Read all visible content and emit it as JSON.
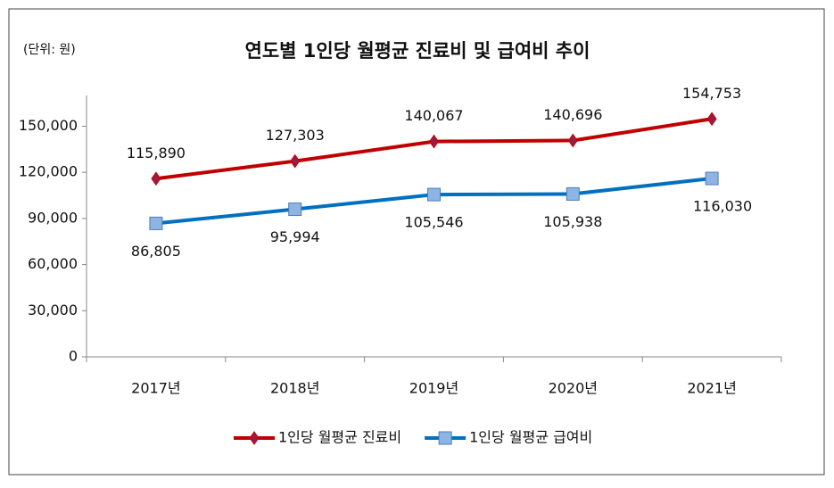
{
  "chart_data": {
    "type": "line",
    "title": "연도별 1인당 월평균 진료비 및 급여비 추이",
    "unit_note": "(단위: 원)",
    "categories": [
      "2017년",
      "2018년",
      "2019년",
      "2020년",
      "2021년"
    ],
    "series": [
      {
        "name": "1인당 월평균 진료비",
        "color": "#c00000",
        "marker_color": "#9b1b45",
        "marker": "diamond",
        "values": [
          115890,
          127303,
          140067,
          140696,
          154753
        ],
        "value_labels": [
          "115,890",
          "127,303",
          "140,067",
          "140,696",
          "154,753"
        ]
      },
      {
        "name": "1인당 월평균 급여비",
        "color": "#0070c0",
        "marker_color": "#8eb4e3",
        "marker": "square",
        "values": [
          86805,
          95994,
          105546,
          105938,
          116030
        ],
        "value_labels": [
          "86,805",
          "95,994",
          "105,546",
          "105,938",
          "116,030"
        ]
      }
    ],
    "ylim": [
      0,
      170000
    ],
    "yticks": [
      0,
      {
        "value": 30000,
        "label": "30,000"
      },
      {
        "value": 60000,
        "label": "60,000"
      },
      {
        "value": 90000,
        "label": "90,000"
      },
      {
        "value": 120000,
        "label": "120,000"
      },
      {
        "value": 150000,
        "label": "150,000"
      }
    ],
    "grid": false,
    "legend": "bottom"
  }
}
